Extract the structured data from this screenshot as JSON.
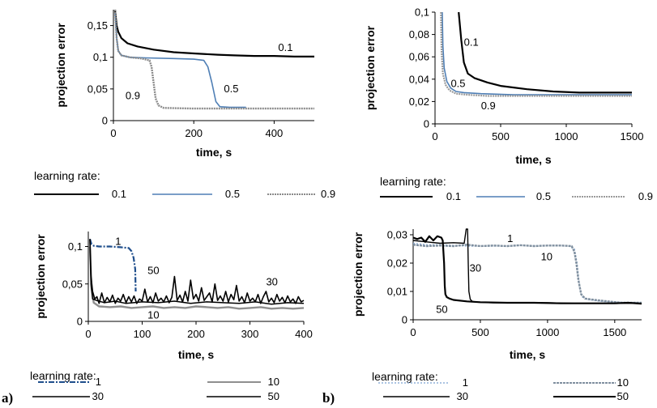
{
  "panel_labels": {
    "a": "a)",
    "b": "b)"
  },
  "chart_data": [
    {
      "id": "top-left",
      "type": "line",
      "xlabel": "time, s",
      "ylabel": "projection error",
      "xlim": [
        0,
        500
      ],
      "ylim": [
        0,
        0.175
      ],
      "xticks": [
        0,
        200,
        400
      ],
      "xtick_labels": [
        "0",
        "200",
        "400"
      ],
      "yticks": [
        0,
        0.05,
        0.1,
        0.15
      ],
      "ytick_labels": [
        "0",
        "0,05",
        "0,1",
        "0,15"
      ],
      "grid": false,
      "legend": {
        "title": "learning rate:",
        "placement": "bottom",
        "entries": [
          "0.1",
          "0.5",
          "0.9"
        ]
      },
      "series": [
        {
          "name": "0.1",
          "color": "#000000",
          "width": 2.2,
          "dash": "",
          "x": [
            4,
            8,
            12,
            20,
            35,
            60,
            100,
            150,
            200,
            260,
            300,
            350,
            400,
            450,
            500
          ],
          "y": [
            0.175,
            0.15,
            0.14,
            0.13,
            0.122,
            0.117,
            0.112,
            0.108,
            0.106,
            0.104,
            0.103,
            0.102,
            0.102,
            0.101,
            0.101
          ]
        },
        {
          "name": "0.5",
          "color": "#4f7fb5",
          "width": 1.6,
          "dash": "",
          "x": [
            4,
            8,
            12,
            20,
            40,
            80,
            150,
            200,
            225,
            235,
            245,
            255,
            265,
            290,
            330
          ],
          "y": [
            0.17,
            0.13,
            0.11,
            0.103,
            0.1,
            0.099,
            0.098,
            0.097,
            0.095,
            0.085,
            0.06,
            0.03,
            0.022,
            0.021,
            0.021
          ]
        },
        {
          "name": "0.9",
          "color": "#8a8a8a",
          "width": 2.4,
          "dash": "2,1",
          "x": [
            4,
            8,
            12,
            20,
            40,
            70,
            90,
            95,
            100,
            105,
            112,
            125,
            200,
            300,
            400,
            500
          ],
          "y": [
            0.175,
            0.13,
            0.11,
            0.103,
            0.1,
            0.098,
            0.095,
            0.085,
            0.06,
            0.035,
            0.024,
            0.02,
            0.019,
            0.019,
            0.019,
            0.019
          ]
        }
      ],
      "annotations": [
        {
          "text": "0.1",
          "x": 410,
          "y": 0.11
        },
        {
          "text": "0.5",
          "x": 275,
          "y": 0.045
        },
        {
          "text": "0.9",
          "x": 30,
          "y": 0.034
        }
      ]
    },
    {
      "id": "top-right",
      "type": "line",
      "xlabel": "time, s",
      "ylabel": "projection error",
      "xlim": [
        0,
        1500
      ],
      "ylim": [
        0,
        0.1
      ],
      "xticks": [
        0,
        500,
        1000,
        1500
      ],
      "xtick_labels": [
        "0",
        "500",
        "1000",
        "1500"
      ],
      "yticks": [
        0,
        0.02,
        0.04,
        0.06,
        0.08,
        0.1
      ],
      "ytick_labels": [
        "0",
        "0,02",
        "0,04",
        "0,06",
        "0,08",
        "0,1"
      ],
      "grid": false,
      "legend": {
        "title": "learning rate:",
        "placement": "bottom",
        "entries": [
          "0.1",
          "0.5",
          "0.9"
        ]
      },
      "series": [
        {
          "name": "0.1",
          "color": "#000000",
          "width": 2.2,
          "dash": "",
          "x": [
            180,
            200,
            220,
            250,
            300,
            400,
            500,
            700,
            900,
            1100,
            1300,
            1500
          ],
          "y": [
            0.1,
            0.075,
            0.055,
            0.045,
            0.041,
            0.037,
            0.034,
            0.031,
            0.029,
            0.028,
            0.028,
            0.028
          ]
        },
        {
          "name": "0.5",
          "color": "#4f7fb5",
          "width": 1.6,
          "dash": "",
          "x": [
            55,
            60,
            70,
            90,
            120,
            160,
            220,
            350,
            600,
            1000,
            1500
          ],
          "y": [
            0.1,
            0.07,
            0.05,
            0.038,
            0.032,
            0.029,
            0.028,
            0.027,
            0.026,
            0.026,
            0.026
          ]
        },
        {
          "name": "0.9",
          "color": "#9a9a9a",
          "width": 2.2,
          "dash": "2,1",
          "x": [
            45,
            50,
            60,
            80,
            110,
            160,
            250,
            400,
            700,
            1100,
            1500
          ],
          "y": [
            0.1,
            0.065,
            0.045,
            0.035,
            0.03,
            0.027,
            0.026,
            0.025,
            0.025,
            0.025,
            0.025
          ]
        }
      ],
      "annotations": [
        {
          "text": "0.1",
          "x": 220,
          "y": 0.07
        },
        {
          "text": "0.5",
          "x": 120,
          "y": 0.033
        },
        {
          "text": "0.9",
          "x": 350,
          "y": 0.013
        }
      ]
    },
    {
      "id": "bottom-left",
      "type": "line",
      "xlabel": "time, s",
      "ylabel": "projection error",
      "xlim": [
        0,
        400
      ],
      "ylim": [
        0,
        0.12
      ],
      "xticks": [
        0,
        100,
        200,
        300,
        400
      ],
      "xtick_labels": [
        "0",
        "100",
        "200",
        "300",
        "400"
      ],
      "yticks": [
        0,
        0.05,
        0.1
      ],
      "ytick_labels": [
        "0",
        "0,05",
        "0,1"
      ],
      "grid": false,
      "legend": {
        "title": "learning rate:",
        "placement": "bottom",
        "entries": [
          "1",
          "10",
          "30",
          "50"
        ]
      },
      "series": [
        {
          "name": "1",
          "color": "#1f4e8c",
          "width": 2.2,
          "dash": "7,2,2,2",
          "x": [
            3,
            6,
            10,
            20,
            40,
            60,
            75,
            80,
            84,
            87,
            88
          ],
          "y": [
            0.11,
            0.103,
            0.101,
            0.1,
            0.1,
            0.099,
            0.098,
            0.094,
            0.085,
            0.07,
            0.04
          ]
        },
        {
          "name": "10",
          "color": "#8f8f8f",
          "width": 2.4,
          "dash": "",
          "x": [
            3,
            6,
            10,
            20,
            40,
            60,
            80,
            100,
            120,
            140,
            160,
            180,
            200,
            220,
            240,
            260,
            280,
            300,
            320,
            340,
            360,
            380,
            400
          ],
          "y": [
            0.1,
            0.045,
            0.025,
            0.02,
            0.019,
            0.02,
            0.018,
            0.019,
            0.02,
            0.018,
            0.019,
            0.018,
            0.02,
            0.019,
            0.018,
            0.019,
            0.017,
            0.018,
            0.019,
            0.017,
            0.018,
            0.017,
            0.018
          ]
        },
        {
          "name": "30",
          "color": "#000000",
          "width": 1.5,
          "dash": "",
          "x": [
            3,
            5,
            8,
            15,
            30,
            50,
            70,
            100,
            130,
            160,
            190,
            220,
            250,
            280,
            310,
            340,
            370,
            400
          ],
          "y": [
            0.11,
            0.05,
            0.03,
            0.028,
            0.025,
            0.027,
            0.024,
            0.026,
            0.025,
            0.027,
            0.024,
            0.026,
            0.025,
            0.024,
            0.026,
            0.023,
            0.025,
            0.024
          ]
        },
        {
          "name": "50",
          "color": "#000000",
          "width": 1.6,
          "dash": "",
          "x": [
            3,
            5,
            8,
            12,
            16,
            20,
            25,
            30,
            35,
            40,
            45,
            50,
            55,
            60,
            65,
            70,
            75,
            80,
            85,
            90,
            95,
            100,
            105,
            110,
            115,
            120,
            125,
            130,
            135,
            140,
            145,
            150,
            155,
            160,
            165,
            170,
            175,
            180,
            185,
            190,
            195,
            200,
            205,
            210,
            215,
            220,
            225,
            230,
            235,
            240,
            245,
            250,
            255,
            260,
            265,
            270,
            275,
            280,
            285,
            290,
            295,
            300,
            305,
            310,
            315,
            320,
            325,
            330,
            335,
            340,
            345,
            350,
            355,
            360,
            365,
            370,
            375,
            380,
            385,
            390,
            395,
            400
          ],
          "y": [
            0.11,
            0.06,
            0.04,
            0.03,
            0.033,
            0.024,
            0.038,
            0.025,
            0.032,
            0.026,
            0.035,
            0.024,
            0.031,
            0.027,
            0.036,
            0.025,
            0.033,
            0.026,
            0.034,
            0.024,
            0.03,
            0.027,
            0.043,
            0.026,
            0.033,
            0.025,
            0.038,
            0.027,
            0.031,
            0.026,
            0.034,
            0.025,
            0.032,
            0.06,
            0.028,
            0.035,
            0.026,
            0.04,
            0.027,
            0.055,
            0.03,
            0.036,
            0.027,
            0.045,
            0.028,
            0.033,
            0.038,
            0.026,
            0.05,
            0.028,
            0.034,
            0.027,
            0.04,
            0.026,
            0.036,
            0.029,
            0.048,
            0.027,
            0.033,
            0.025,
            0.038,
            0.027,
            0.031,
            0.026,
            0.036,
            0.024,
            0.033,
            0.04,
            0.026,
            0.031,
            0.025,
            0.036,
            0.027,
            0.032,
            0.025,
            0.034,
            0.026,
            0.03,
            0.024,
            0.033,
            0.026,
            0.028
          ]
        }
      ],
      "annotations": [
        {
          "text": "1",
          "x": 50,
          "y": 0.102
        },
        {
          "text": "50",
          "x": 110,
          "y": 0.063
        },
        {
          "text": "30",
          "x": 330,
          "y": 0.048
        },
        {
          "text": "10",
          "x": 110,
          "y": 0.004
        }
      ]
    },
    {
      "id": "bottom-right",
      "type": "line",
      "xlabel": "time, s",
      "ylabel": "projection error",
      "xlim": [
        0,
        1700
      ],
      "ylim": [
        0,
        0.032
      ],
      "xticks": [
        0,
        500,
        1000,
        1500
      ],
      "xtick_labels": [
        "0",
        "500",
        "1000",
        "1500"
      ],
      "yticks": [
        0,
        0.01,
        0.02,
        0.03
      ],
      "ytick_labels": [
        "0",
        "0,01",
        "0,02",
        "0,03"
      ],
      "grid": false,
      "legend": {
        "title": "learning rate:",
        "placement": "bottom",
        "entries": [
          "1",
          "10",
          "30",
          "50"
        ]
      },
      "series": [
        {
          "name": "1",
          "color": "#8fb0d8",
          "width": 1.4,
          "dash": "2,2",
          "x": [
            0,
            100,
            200,
            400,
            600,
            800,
            1000,
            1150,
            1200,
            1220,
            1240,
            1260,
            1290,
            1400,
            1500,
            1700
          ],
          "y": [
            0.027,
            0.0265,
            0.0265,
            0.026,
            0.026,
            0.0262,
            0.0262,
            0.0262,
            0.025,
            0.02,
            0.011,
            0.008,
            0.0072,
            0.0065,
            0.0062,
            0.006
          ]
        },
        {
          "name": "10",
          "color": "#7f8f9f",
          "width": 2.4,
          "dash": "3,1",
          "x": [
            0,
            100,
            200,
            300,
            400,
            500,
            600,
            700,
            800,
            900,
            1000,
            1100,
            1180,
            1200,
            1215,
            1230,
            1250,
            1280,
            1350,
            1450,
            1550,
            1700
          ],
          "y": [
            0.0265,
            0.026,
            0.0262,
            0.026,
            0.0265,
            0.026,
            0.0262,
            0.026,
            0.0263,
            0.026,
            0.0262,
            0.0262,
            0.026,
            0.024,
            0.02,
            0.014,
            0.009,
            0.0075,
            0.007,
            0.0065,
            0.006,
            0.006
          ]
        },
        {
          "name": "30",
          "color": "#000000",
          "width": 1.4,
          "dash": "",
          "x": [
            0,
            100,
            200,
            300,
            380,
            395,
            405,
            410,
            415,
            425,
            440,
            480,
            600,
            800,
            1000,
            1200,
            1500,
            1700
          ],
          "y": [
            0.028,
            0.0275,
            0.027,
            0.0272,
            0.027,
            0.032,
            0.033,
            0.02,
            0.01,
            0.0072,
            0.0065,
            0.0062,
            0.006,
            0.006,
            0.006,
            0.0058,
            0.0058,
            0.0058
          ]
        },
        {
          "name": "50",
          "color": "#000000",
          "width": 2.2,
          "dash": "",
          "x": [
            0,
            30,
            60,
            90,
            120,
            150,
            180,
            210,
            220,
            230,
            235,
            240,
            250,
            270,
            300,
            400,
            500,
            700,
            900,
            1100,
            1300,
            1500,
            1600,
            1700
          ],
          "y": [
            0.029,
            0.0285,
            0.029,
            0.0275,
            0.0295,
            0.028,
            0.0295,
            0.029,
            0.028,
            0.02,
            0.012,
            0.009,
            0.008,
            0.0075,
            0.007,
            0.0065,
            0.0062,
            0.006,
            0.006,
            0.0058,
            0.0058,
            0.0058,
            0.006,
            0.0057
          ]
        }
      ],
      "annotations": [
        {
          "text": "1",
          "x": 700,
          "y": 0.0275
        },
        {
          "text": "10",
          "x": 950,
          "y": 0.021
        },
        {
          "text": "30",
          "x": 420,
          "y": 0.017
        },
        {
          "text": "50",
          "x": 170,
          "y": 0.0025
        }
      ]
    }
  ]
}
